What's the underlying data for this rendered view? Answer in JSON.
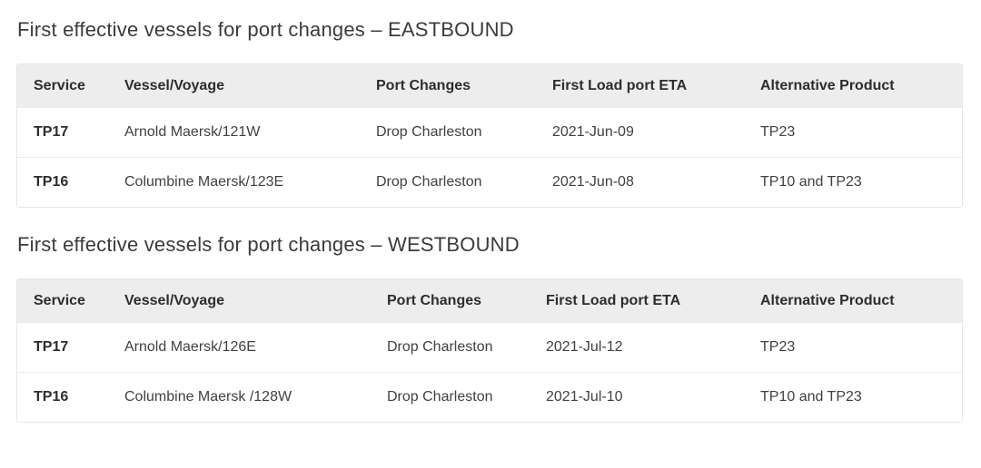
{
  "colors": {
    "page_background": "#ffffff",
    "heading_text": "#3b3b3b",
    "table_header_background": "#ededed",
    "table_header_text": "#2d2d2d",
    "table_body_text": "#414141",
    "table_border": "#e7e7e7",
    "row_separator": "#ebebeb"
  },
  "sections": [
    {
      "heading": "First effective vessels for port changes – EASTBOUND",
      "table": {
        "columns": [
          "Service",
          "Vessel/Voyage",
          "Port Changes",
          "First Load port ETA",
          "Alternative Product"
        ],
        "rows": [
          [
            "TP17",
            "Arnold Maersk/121W",
            "Drop Charleston",
            "2021-Jun-09",
            "TP23"
          ],
          [
            "TP16",
            "Columbine Maersk/123E",
            "Drop Charleston",
            "2021-Jun-08",
            "TP10 and TP23"
          ]
        ]
      }
    },
    {
      "heading": "First effective vessels for port changes – WESTBOUND",
      "table": {
        "columns": [
          "Service",
          "Vessel/Voyage",
          "Port Changes",
          "First Load port ETA",
          "Alternative Product"
        ],
        "rows": [
          [
            "TP17",
            "Arnold Maersk/126E",
            "Drop Charleston",
            "2021-Jul-12",
            "TP23"
          ],
          [
            "TP16",
            "Columbine Maersk /128W",
            "Drop Charleston",
            "2021-Jul-10",
            "TP10 and TP23"
          ]
        ]
      }
    }
  ]
}
